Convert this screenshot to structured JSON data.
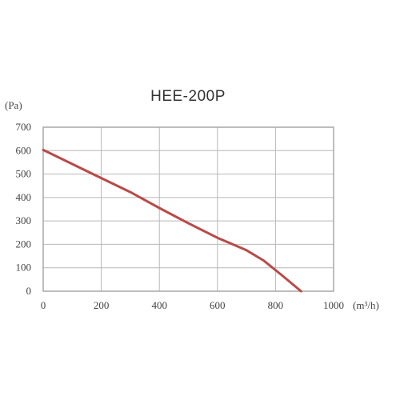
{
  "chart_data": {
    "type": "line",
    "title": "HEE-200P",
    "ylabel": "(Pa)",
    "xlabel": "(m³/h)",
    "xlim": [
      0,
      1000
    ],
    "ylim": [
      0,
      700
    ],
    "xticks": [
      0,
      200,
      400,
      600,
      800,
      1000
    ],
    "yticks": [
      0,
      100,
      200,
      300,
      400,
      500,
      600,
      700
    ],
    "grid": true,
    "series": [
      {
        "color": "#b94a47",
        "x": [
          0,
          100,
          200,
          300,
          400,
          500,
          600,
          700,
          760,
          820,
          888
        ],
        "y": [
          603,
          543,
          483,
          423,
          355,
          290,
          228,
          175,
          130,
          70,
          0
        ]
      }
    ]
  }
}
